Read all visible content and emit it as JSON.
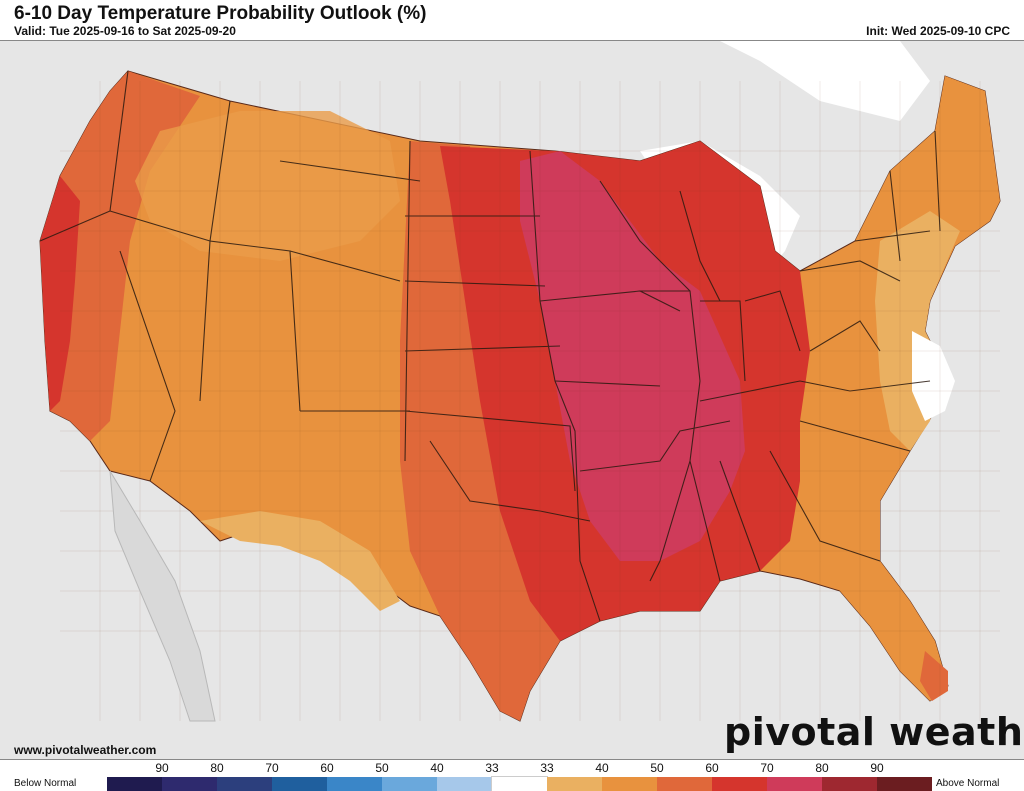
{
  "header": {
    "title": "6-10 Day Temperature Probability Outlook (%)",
    "valid": "Valid: Tue 2025-09-16 to Sat 2025-09-20",
    "init": "Init: Wed 2025-09-10 CPC"
  },
  "footer": {
    "site_url": "www.pivotalweather.com",
    "brand": "pivotal weather"
  },
  "legend": {
    "below_label": "Below Normal",
    "above_label": "Above Normal",
    "ticks": [
      "90",
      "80",
      "70",
      "60",
      "50",
      "40",
      "33",
      "33",
      "40",
      "50",
      "60",
      "70",
      "80",
      "90"
    ],
    "colors": [
      "#1f1b4f",
      "#2e2a6e",
      "#2c3f7d",
      "#1f5f9e",
      "#3a86c8",
      "#6aa8dc",
      "#a6c8ea",
      "#ffffff",
      "#eab061",
      "#e8923e",
      "#e0683a",
      "#d5352d",
      "#cf3b5a",
      "#9e2830",
      "#6b1d20"
    ]
  },
  "map": {
    "land_color": "#e6e6e6",
    "water_color": "#ffffff",
    "category_colors": {
      "above_33_40": "#eab061",
      "above_40_50": "#e8923e",
      "above_50_60": "#e0683a",
      "above_60_70": "#d5352d",
      "above_70_80": "#cf3b5a",
      "near_normal": "#ffffff"
    }
  }
}
